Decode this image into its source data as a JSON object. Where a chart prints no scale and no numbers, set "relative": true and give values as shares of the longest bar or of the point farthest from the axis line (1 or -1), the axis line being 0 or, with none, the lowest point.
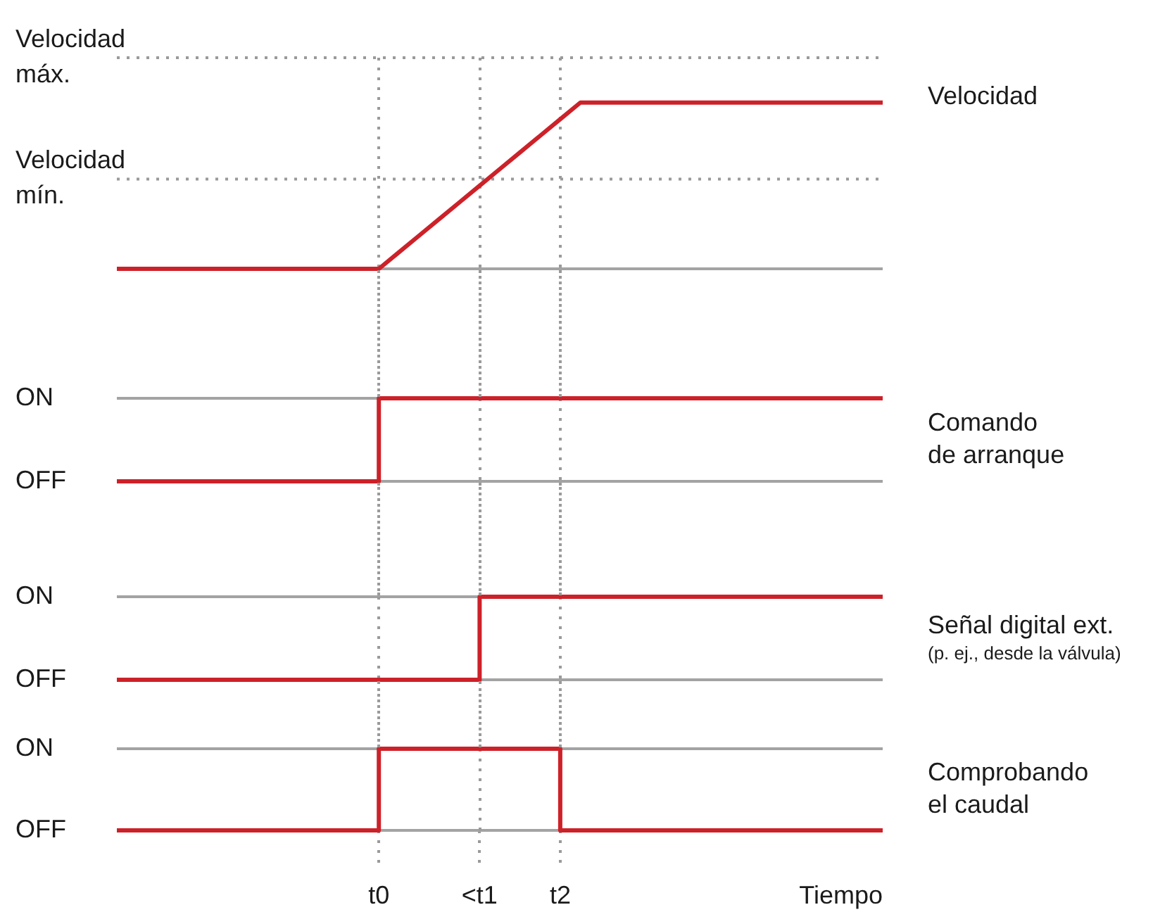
{
  "chart_data": [
    {
      "type": "line",
      "relative": true,
      "tick_labels": false,
      "categories": [
        null,
        null,
        null,
        null,
        null,
        null,
        null,
        null,
        null,
        null,
        null,
        null,
        null,
        "t0",
        null,
        null,
        null,
        null,
        "<t1",
        null,
        null,
        null,
        "t2",
        null,
        null,
        null,
        null,
        null,
        null,
        null,
        null,
        null,
        null,
        null,
        null,
        null,
        null,
        null,
        null
      ],
      "series": [
        {
          "name": "Velocidad",
          "color": "#cd2129",
          "values": [
            0,
            0,
            0,
            0,
            0,
            0,
            0,
            0,
            0,
            0,
            0,
            0,
            0,
            0,
            0.1,
            0.2,
            0.3,
            0.4,
            0.5,
            0.6,
            0.7,
            0.8,
            0.9,
            1,
            1,
            1,
            1,
            1,
            1,
            1,
            1,
            1,
            1,
            1,
            1,
            1,
            1,
            1,
            1
          ]
        }
      ],
      "ref_lines": [
        {
          "axis": "y",
          "value": 1.27,
          "label": "Velocidad máx.",
          "color": "#9a9a9a",
          "line_style": "dotted"
        },
        {
          "axis": "y",
          "value": 0.54,
          "label": "Velocidad mín.",
          "color": "#9a9a9a",
          "line_style": "dotted"
        },
        {
          "axis": "x",
          "value": "t0",
          "color": "#9a9a9a",
          "line_style": "dotted"
        },
        {
          "axis": "x",
          "value": "<t1",
          "color": "#9a9a9a",
          "line_style": "dotted"
        },
        {
          "axis": "x",
          "value": "t2",
          "color": "#9a9a9a",
          "line_style": "dotted"
        }
      ]
    },
    {
      "type": "step",
      "relative": true,
      "tick_labels": false,
      "categories": [
        null,
        null,
        null,
        null,
        null,
        null,
        null,
        null,
        null,
        null,
        null,
        null,
        null,
        "t0",
        null,
        null,
        null,
        null,
        "<t1",
        null,
        null,
        null,
        "t2",
        null,
        null,
        null,
        null,
        null,
        null,
        null,
        null,
        null,
        null,
        null,
        null,
        null,
        null,
        null,
        null
      ],
      "series": [
        {
          "name": "Comando de arranque",
          "color": "#cd2129",
          "values": [
            0,
            0,
            0,
            0,
            0,
            0,
            0,
            0,
            0,
            0,
            0,
            0,
            0,
            1,
            1,
            1,
            1,
            1,
            1,
            1,
            1,
            1,
            1,
            1,
            1,
            1,
            1,
            1,
            1,
            1,
            1,
            1,
            1,
            1,
            1,
            1,
            1,
            1,
            1
          ]
        }
      ],
      "annotations": [
        "OFF"
      ],
      "ref_lines": [
        {
          "axis": "y",
          "value": 1,
          "label": "ON",
          "color": "#a3a3a3"
        },
        {
          "axis": "x",
          "value": "<t1",
          "color": "#9a9a9a",
          "line_style": "dotted"
        },
        {
          "axis": "x",
          "value": "t2",
          "color": "#9a9a9a",
          "line_style": "dotted"
        }
      ]
    },
    {
      "type": "step",
      "relative": true,
      "tick_labels": false,
      "categories": [
        null,
        null,
        null,
        null,
        null,
        null,
        null,
        null,
        null,
        null,
        null,
        null,
        null,
        "t0",
        null,
        null,
        null,
        null,
        "<t1",
        null,
        null,
        null,
        "t2",
        null,
        null,
        null,
        null,
        null,
        null,
        null,
        null,
        null,
        null,
        null,
        null,
        null,
        null,
        null,
        null
      ],
      "series": [
        {
          "name": "Señal digital ext.",
          "color": "#cd2129",
          "values": [
            0,
            0,
            0,
            0,
            0,
            0,
            0,
            0,
            0,
            0,
            0,
            0,
            0,
            0,
            0,
            0,
            0,
            0,
            1,
            1,
            1,
            1,
            1,
            1,
            1,
            1,
            1,
            1,
            1,
            1,
            1,
            1,
            1,
            1,
            1,
            1,
            1,
            1,
            1
          ]
        }
      ],
      "annotations": [
        "(p. ej., desde la válvula)",
        "OFF"
      ],
      "ref_lines": [
        {
          "axis": "y",
          "value": 1,
          "label": "ON",
          "color": "#a3a3a3"
        },
        {
          "axis": "x",
          "value": "t0",
          "color": "#9a9a9a",
          "line_style": "dotted"
        },
        {
          "axis": "x",
          "value": "t2",
          "color": "#9a9a9a",
          "line_style": "dotted"
        }
      ]
    },
    {
      "type": "step",
      "relative": true,
      "xlabel": "Tiempo",
      "categories": [
        null,
        null,
        null,
        null,
        null,
        null,
        null,
        null,
        null,
        null,
        null,
        null,
        null,
        "t0",
        null,
        null,
        null,
        null,
        "<t1",
        null,
        null,
        null,
        "t2",
        null,
        null,
        null,
        null,
        null,
        null,
        null,
        null,
        null,
        null,
        null,
        null,
        null,
        null,
        null,
        null
      ],
      "series": [
        {
          "name": "Comprobando el caudal",
          "color": "#cd2129",
          "values": [
            0,
            0,
            0,
            0,
            0,
            0,
            0,
            0,
            0,
            0,
            0,
            0,
            0,
            1,
            1,
            1,
            1,
            1,
            1,
            1,
            1,
            1,
            0,
            0,
            0,
            0,
            0,
            0,
            0,
            0,
            0,
            0,
            0,
            0,
            0,
            0,
            0,
            0,
            0
          ]
        }
      ],
      "annotations": [
        "OFF"
      ],
      "ref_lines": [
        {
          "axis": "y",
          "value": 1,
          "label": "ON",
          "color": "#a3a3a3"
        },
        {
          "axis": "x",
          "value": "<t1",
          "color": "#9a9a9a",
          "line_style": "dotted"
        }
      ]
    }
  ]
}
